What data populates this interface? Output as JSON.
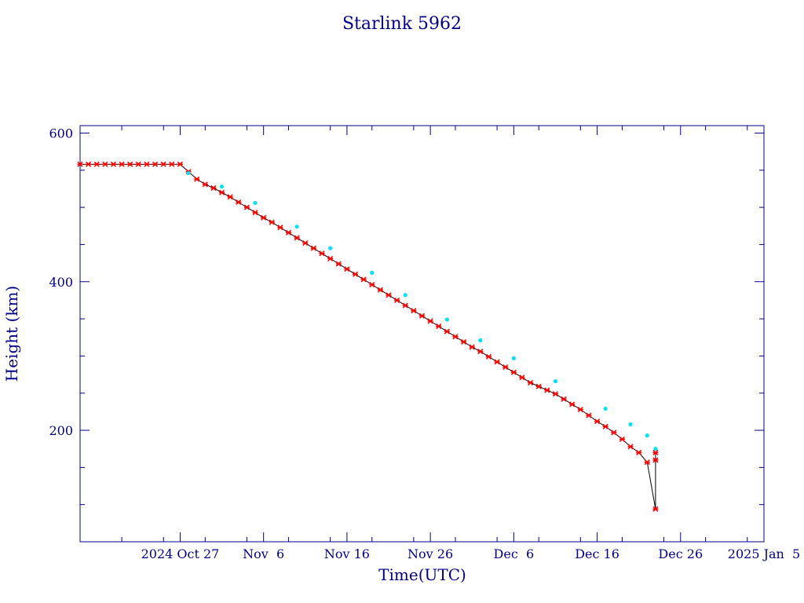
{
  "chart_data": {
    "type": "scatter",
    "title": "Starlink 5962",
    "xlabel": "Time(UTC)",
    "ylabel": "Height (km)",
    "xlim": [
      "2024-10-15",
      "2025-01-05"
    ],
    "ylim": [
      50,
      610
    ],
    "x_tick_labels": [
      {
        "date": "2024-10-27",
        "label": "2024 Oct 27"
      },
      {
        "date": "2024-11-06",
        "label": "Nov  6"
      },
      {
        "date": "2024-11-16",
        "label": "Nov 16"
      },
      {
        "date": "2024-11-26",
        "label": "Nov 26"
      },
      {
        "date": "2024-12-06",
        "label": "Dec  6"
      },
      {
        "date": "2024-12-16",
        "label": "Dec 16"
      },
      {
        "date": "2024-12-26",
        "label": "Dec 26"
      },
      {
        "date": "2025-01-05",
        "label": "2025 Jan  5"
      }
    ],
    "y_ticks": [
      200,
      400,
      600
    ],
    "grid": false,
    "colors": {
      "axis": "#00008b",
      "line": "#000000",
      "primary_markers": "#ff0000",
      "secondary_markers": "#00e5ee"
    },
    "series": [
      {
        "marker": "x",
        "color": "#ff0000",
        "x": [
          "2024-10-15",
          "2024-10-16",
          "2024-10-17",
          "2024-10-18",
          "2024-10-19",
          "2024-10-20",
          "2024-10-21",
          "2024-10-22",
          "2024-10-23",
          "2024-10-24",
          "2024-10-25",
          "2024-10-26",
          "2024-10-27",
          "2024-10-28",
          "2024-10-29",
          "2024-10-30",
          "2024-10-31",
          "2024-11-01",
          "2024-11-02",
          "2024-11-03",
          "2024-11-04",
          "2024-11-05",
          "2024-11-06",
          "2024-11-07",
          "2024-11-08",
          "2024-11-09",
          "2024-11-10",
          "2024-11-11",
          "2024-11-12",
          "2024-11-13",
          "2024-11-14",
          "2024-11-15",
          "2024-11-16",
          "2024-11-17",
          "2024-11-18",
          "2024-11-19",
          "2024-11-20",
          "2024-11-21",
          "2024-11-22",
          "2024-11-23",
          "2024-11-24",
          "2024-11-25",
          "2024-11-26",
          "2024-11-27",
          "2024-11-28",
          "2024-11-29",
          "2024-11-30",
          "2024-12-01",
          "2024-12-02",
          "2024-12-03",
          "2024-12-04",
          "2024-12-05",
          "2024-12-06",
          "2024-12-07",
          "2024-12-08",
          "2024-12-09",
          "2024-12-10",
          "2024-12-11",
          "2024-12-12",
          "2024-12-13",
          "2024-12-14",
          "2024-12-15",
          "2024-12-16",
          "2024-12-17",
          "2024-12-18",
          "2024-12-19",
          "2024-12-20",
          "2024-12-21",
          "2024-12-22",
          "2024-12-23",
          "2024-12-23",
          "2024-12-23"
        ],
        "y": [
          558,
          558,
          558,
          558,
          558,
          558,
          558,
          558,
          558,
          558,
          558,
          558,
          558,
          548,
          538,
          531,
          526,
          520,
          514,
          507,
          500,
          493,
          486,
          480,
          473,
          466,
          459,
          452,
          445,
          438,
          431,
          424,
          417,
          410,
          403,
          396,
          389,
          382,
          375,
          368,
          361,
          354,
          347,
          340,
          333,
          326,
          319,
          312,
          306,
          299,
          292,
          285,
          278,
          271,
          264,
          259,
          254,
          249,
          242,
          235,
          228,
          220,
          212,
          205,
          197,
          188,
          178,
          170,
          157,
          94,
          160,
          170
        ]
      },
      {
        "marker": "dot",
        "color": "#00e5ee",
        "x": [
          "2024-10-28",
          "2024-11-01",
          "2024-11-05",
          "2024-11-10",
          "2024-11-14",
          "2024-11-19",
          "2024-11-23",
          "2024-11-28",
          "2024-12-02",
          "2024-12-06",
          "2024-12-11",
          "2024-12-17",
          "2024-12-20",
          "2024-12-22",
          "2024-12-23"
        ],
        "y": [
          546,
          528,
          506,
          474,
          445,
          412,
          382,
          349,
          321,
          297,
          266,
          229,
          208,
          193,
          175
        ]
      }
    ]
  }
}
